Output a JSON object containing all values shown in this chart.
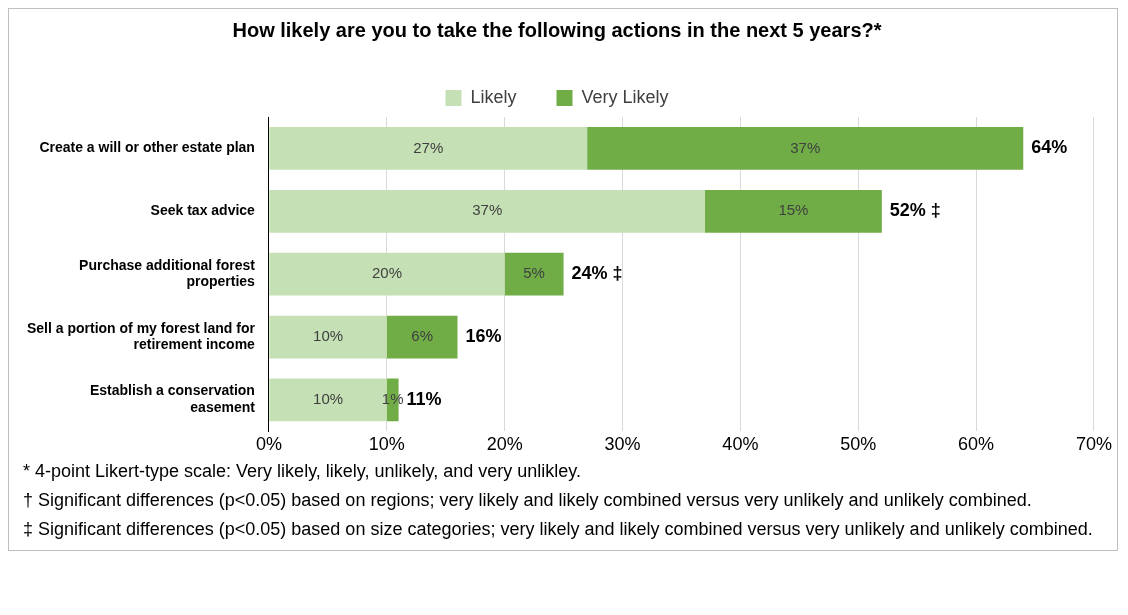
{
  "chart_data": {
    "type": "bar",
    "orientation": "horizontal",
    "stacked": true,
    "title": "How likely are you to take the following actions in the next 5 years?*",
    "categories": [
      "Create a will or other estate plan",
      "Seek tax advice",
      "Purchase additional forest properties",
      "Sell a portion of my forest land for retirement income",
      "Establish a conservation easement"
    ],
    "series": [
      {
        "name": "Likely",
        "color": "#c5e0b4",
        "values": [
          27,
          37,
          20,
          10,
          10
        ],
        "value_labels": [
          "27%",
          "37%",
          "20%",
          "10%",
          "10%"
        ]
      },
      {
        "name": "Very Likely",
        "color": "#70ad47",
        "values": [
          37,
          15,
          5,
          6,
          1
        ],
        "value_labels": [
          "37%",
          "15%",
          "5%",
          "6%",
          "1%"
        ]
      }
    ],
    "totals": [
      "64%",
      "52% ‡",
      "24% ‡",
      "16%",
      "11%"
    ],
    "xlim": [
      0,
      70
    ],
    "xticks": [
      {
        "value": 0,
        "label": "0%"
      },
      {
        "value": 10,
        "label": "10%"
      },
      {
        "value": 20,
        "label": "20%"
      },
      {
        "value": 30,
        "label": "30%"
      },
      {
        "value": 40,
        "label": "40%"
      },
      {
        "value": 50,
        "label": "50%"
      },
      {
        "value": 60,
        "label": "60%"
      },
      {
        "value": 70,
        "label": "70%"
      }
    ],
    "grid": "x",
    "legend": "top",
    "annotations": [
      "* 4-point Likert-type scale: Very likely, likely, unlikely, and very unlikley.",
      "† Significant differences (p<0.05) based on regions; very likely and likely combined versus very unlikely and unlikely combined.",
      "‡ Significant differences (p<0.05) based on size categories; very likely and likely combined versus very unlikely and unlikely combined."
    ]
  }
}
